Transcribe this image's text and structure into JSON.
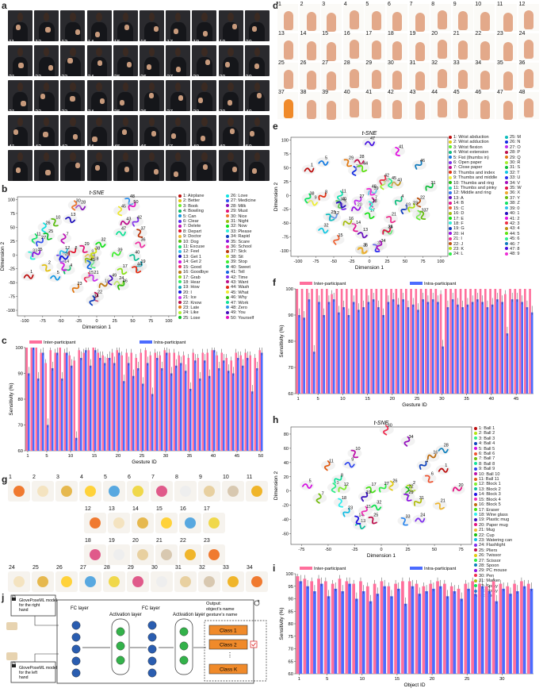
{
  "panels": {
    "a": "a",
    "b": "b",
    "c": "c",
    "d": "d",
    "e": "e",
    "f": "f",
    "g": "g",
    "h": "h",
    "i": "i",
    "j": "j"
  },
  "tsne_title": "t-SNE",
  "axes": {
    "dim1": "Dimension 1",
    "dim2": "Dimension 2",
    "sens": "Sensitivity (%)",
    "gesture_id": "Gesture ID",
    "object_id": "Object ID"
  },
  "legend_names": {
    "inter": "Inter-participant",
    "intra": "Intra-participant"
  },
  "colors": {
    "inter": "#ff6f9c",
    "intra": "#4b6bff",
    "orange": "#f08a2a",
    "block_border": "#333333"
  },
  "legend_b_col1": [
    "1: Airplane",
    "2: Better",
    "3: Book",
    "4: Bowling",
    "5: Can",
    "6: Clear",
    "7: Delete",
    "8: Depart",
    "9: Doctor",
    "10: Dog",
    "11: Excuse",
    "12: Feel",
    "13: Get 1",
    "14: Get 2",
    "15: Good",
    "16: Goodbye",
    "17: Grab",
    "18: Hear",
    "19: How",
    "20: I",
    "21: Ice",
    "22: Know",
    "23: Late",
    "24: Like",
    "25: Lose"
  ],
  "legend_b_col2": [
    "26: Love",
    "27: Medicine",
    "28: Milk",
    "29: Must",
    "30: Nice",
    "31: Night",
    "32: Now",
    "33: Please",
    "34: Rapid",
    "35: Scare",
    "36: School",
    "37: Sick",
    "38: Sit",
    "39: Stop",
    "40: Sweet",
    "41: Tell",
    "42: Time",
    "43: Want",
    "44: Wash",
    "45: What",
    "46: Why",
    "47: Work",
    "48: Zero",
    "49: You",
    "50: Yourself"
  ],
  "legend_e_col1": [
    "1: Wrist abduction",
    "2: Wrist adduction",
    "3: Wrist flexion",
    "4: Wrist extension",
    "5: Fist (thumbs in)",
    "6: Open paper",
    "7: Close paper",
    "8: Thumbs and index",
    "9: Thumbs and middle",
    "10: Thumbs and ring",
    "11: Thumbs and pinky",
    "12: Middle and ring",
    "13: A",
    "14: B",
    "15: C",
    "16: D",
    "17: E",
    "18: F",
    "19: G",
    "20: H",
    "21: I",
    "22: J",
    "23: K",
    "24: L"
  ],
  "legend_e_col2": [
    "25: M",
    "26: N",
    "27: O",
    "28: P",
    "29: Q",
    "30: R",
    "31: S",
    "32: T",
    "33: U",
    "34: V",
    "35: W",
    "36: X",
    "37: Y",
    "38: Z",
    "39: 0",
    "40: 1",
    "41: 2",
    "42: 3",
    "43: 4",
    "44: 5",
    "45: 6",
    "46: 7",
    "47: 8",
    "48: 9"
  ],
  "legend_h": [
    "1: Ball 1",
    "2: Ball 2",
    "3: Ball 3",
    "4: Ball 4",
    "5: Ball 5",
    "6: Ball 6",
    "7: Ball 7",
    "8: Ball 8",
    "9: Ball 9",
    "10: Ball 10",
    "11: Ball 11",
    "12: Block 1",
    "13: Block 2",
    "14: Block 3",
    "15: Block 4",
    "16: Block 5",
    "17: Eraser",
    "18: Wine glass",
    "19: Plastic mug",
    "20: Paper mug",
    "21: Mug",
    "22: Cup",
    "23: Watering can",
    "24: Flashlight",
    "25: Pliers",
    "26: Twissor",
    "27: Scissor",
    "28: Spoon",
    "29: PC mouse",
    "30: Pen",
    "31: Marker",
    "32: Spray L",
    "33: Spray",
    "34: Coin"
  ],
  "diagram_j": {
    "left_model_top": "GlovePoseML model for the right hand",
    "left_model_bottom": "GlovePoseML model for the left hand",
    "fc1": "FC layer",
    "act1": "Activation layer",
    "fc2": "FC layer",
    "act2": "Activation layer",
    "output_title": "Output: object's name gesture's name",
    "class1": "Class 1",
    "class2": "Class 2",
    "ellipsis": "⋮",
    "classk": "Class K"
  },
  "chart_data": [
    {
      "panel": "b",
      "type": "scatter",
      "title": "t-SNE",
      "xlabel": "Dimension 1",
      "ylabel": "Dimension 2",
      "xlim": [
        -110,
        110
      ],
      "ylim": [
        -110,
        105
      ],
      "xticks": [
        -100,
        -75,
        -50,
        -25,
        0,
        25,
        50,
        75,
        100
      ],
      "yticks": [
        -100,
        -75,
        -50,
        -25,
        0,
        25,
        50,
        75,
        100
      ],
      "x": [
        -95,
        -70,
        -8,
        -40,
        -58,
        -50,
        -45,
        -33,
        -10,
        -58,
        -85,
        -45,
        -37,
        -46,
        -12,
        10,
        35,
        -5,
        60,
        -45,
        -5,
        0,
        -28,
        30,
        -68,
        -72,
        -78,
        -23,
        -18,
        -30,
        -10,
        5,
        -90,
        -5,
        -83,
        60,
        60,
        -3,
        28,
        52,
        -10,
        55,
        40,
        55,
        33,
        35,
        33,
        45,
        20,
        50
      ],
      "y": [
        -38,
        -22,
        -8,
        -27,
        -40,
        -5,
        30,
        5,
        -2,
        60,
        30,
        5,
        65,
        -20,
        -40,
        -55,
        -28,
        -15,
        -20,
        -6,
        -40,
        -75,
        -60,
        -50,
        35,
        50,
        23,
        87,
        12,
        90,
        -8,
        20,
        0,
        -82,
        2,
        20,
        40,
        4,
        1,
        -3,
        -17,
        60,
        57,
        -25,
        80,
        -55,
        40,
        98,
        -45,
        88
      ],
      "labels": [
        "1",
        "2",
        "3",
        "4",
        "5",
        "6",
        "7",
        "8",
        "9",
        "10",
        "11",
        "12",
        "13",
        "14",
        "15",
        "16",
        "17",
        "18",
        "19",
        "20",
        "21",
        "22",
        "23",
        "24",
        "25",
        "26",
        "27",
        "28",
        "29",
        "30",
        "31",
        "32",
        "33",
        "34",
        "35",
        "36",
        "37",
        "38",
        "39",
        "40",
        "41",
        "42",
        "43",
        "44",
        "45",
        "46",
        "47",
        "48",
        "49",
        "50"
      ]
    },
    {
      "panel": "c",
      "type": "bar",
      "ylabel": "Sensitivity (%)",
      "xlabel": "Gesture ID",
      "ylim": [
        60,
        100
      ],
      "yticks": [
        60,
        70,
        80,
        90,
        100
      ],
      "categories": [
        "1",
        "2",
        "3",
        "4",
        "5",
        "6",
        "7",
        "8",
        "9",
        "10",
        "11",
        "12",
        "13",
        "14",
        "15",
        "16",
        "17",
        "18",
        "19",
        "20",
        "21",
        "22",
        "23",
        "24",
        "25",
        "26",
        "27",
        "28",
        "29",
        "30",
        "31",
        "32",
        "33",
        "34",
        "35",
        "36",
        "37",
        "38",
        "39",
        "40",
        "41",
        "42",
        "43",
        "44",
        "45",
        "46",
        "47",
        "48",
        "49",
        "50"
      ],
      "xtick_labels": [
        "1",
        "5",
        "10",
        "15",
        "20",
        "25",
        "30",
        "35",
        "40",
        "45",
        "50"
      ],
      "series": [
        {
          "name": "Inter-participant",
          "values": [
            100,
            100,
            100,
            98,
            94,
            99,
            98,
            100,
            98,
            97,
            95,
            99,
            98,
            99,
            100,
            98,
            97,
            96,
            98,
            99,
            97,
            98,
            98,
            96,
            98,
            99,
            97,
            98,
            97,
            99,
            98,
            98,
            97,
            97,
            96,
            98,
            96,
            98,
            98,
            99,
            97,
            98,
            96,
            95,
            98,
            97,
            98,
            97,
            96,
            99
          ]
        },
        {
          "name": "Intra-participant",
          "values": [
            90,
            100,
            88,
            98,
            70,
            92,
            98,
            88,
            98,
            93,
            65,
            96,
            99,
            93,
            99,
            96,
            94,
            96,
            94,
            98,
            87,
            94,
            89,
            92,
            86,
            94,
            82,
            96,
            92,
            98,
            90,
            93,
            94,
            91,
            84,
            95,
            88,
            95,
            89,
            99,
            92,
            95,
            91,
            90,
            96,
            93,
            96,
            83,
            92,
            98
          ]
        }
      ]
    },
    {
      "panel": "e",
      "type": "scatter",
      "title": "t-SNE",
      "xlabel": "Dimension 1",
      "ylabel": "Dimension 2",
      "xlim": [
        -110,
        110
      ],
      "ylim": [
        -110,
        105
      ],
      "xticks": [
        -100,
        -75,
        -50,
        -25,
        0,
        25,
        50,
        75,
        100
      ],
      "yticks": [
        -100,
        -75,
        -50,
        -25,
        0,
        25,
        50,
        75,
        100
      ],
      "x": [
        -85,
        -10,
        70,
        42,
        -65,
        -38,
        5,
        -65,
        -80,
        -42,
        -40,
        -50,
        -10,
        -20,
        -45,
        -30,
        0,
        3,
        50,
        -18,
        30,
        70,
        60,
        25,
        -55,
        -20,
        -15,
        -15,
        -30,
        20,
        85,
        -65,
        10,
        15,
        25,
        -10,
        75,
        -85,
        5,
        -40,
        40,
        20,
        38,
        -10,
        30,
        70,
        0,
        2
      ],
      "y": [
        47,
        -98,
        -35,
        -10,
        60,
        -18,
        -12,
        -2,
        -12,
        -15,
        0,
        -40,
        -70,
        -57,
        -80,
        -50,
        -35,
        -18,
        -25,
        -25,
        -42,
        -12,
        -22,
        -65,
        -38,
        45,
        -10,
        62,
        60,
        20,
        15,
        -62,
        -94,
        -90,
        -65,
        -98,
        -35,
        -5,
        5,
        -15,
        80,
        28,
        20,
        50,
        23,
        55,
        95,
        8
      ],
      "labels": [
        "1",
        "2",
        "3",
        "4",
        "5",
        "6",
        "7",
        "8",
        "9",
        "10",
        "11",
        "12",
        "13",
        "14",
        "15",
        "16",
        "17",
        "18",
        "19",
        "20",
        "21",
        "22",
        "23",
        "24",
        "25",
        "26",
        "27",
        "28",
        "29",
        "30",
        "31",
        "32",
        "33",
        "34",
        "35",
        "36",
        "37",
        "38",
        "39",
        "40",
        "41",
        "42",
        "43",
        "44",
        "45",
        "46",
        "47",
        "48"
      ]
    },
    {
      "panel": "f",
      "type": "bar",
      "ylabel": "Sensitivity (%)",
      "xlabel": "Gesture ID",
      "ylim": [
        60,
        100
      ],
      "yticks": [
        60,
        70,
        80,
        90,
        100
      ],
      "categories": [
        "1",
        "2",
        "3",
        "4",
        "5",
        "6",
        "7",
        "8",
        "9",
        "10",
        "11",
        "12",
        "13",
        "14",
        "15",
        "16",
        "17",
        "18",
        "19",
        "20",
        "21",
        "22",
        "23",
        "24",
        "25",
        "26",
        "27",
        "28",
        "29",
        "30",
        "31",
        "32",
        "33",
        "34",
        "35",
        "36",
        "37",
        "38",
        "39",
        "40",
        "41",
        "42",
        "43",
        "44",
        "45",
        "46",
        "47",
        "48"
      ],
      "xtick_labels": [
        "1",
        "5",
        "10",
        "15",
        "20",
        "25",
        "30",
        "35",
        "40",
        "45"
      ],
      "series": [
        {
          "name": "Inter-participant",
          "values": [
            100,
            100,
            100,
            100,
            100,
            100,
            100,
            98,
            100,
            100,
            100,
            100,
            100,
            100,
            100,
            100,
            100,
            100,
            100,
            100,
            100,
            100,
            100,
            100,
            100,
            100,
            100,
            100,
            100,
            98,
            100,
            100,
            100,
            100,
            100,
            100,
            100,
            100,
            100,
            100,
            100,
            100,
            98,
            100,
            100,
            100,
            100,
            100
          ]
        },
        {
          "name": "Intra-participant",
          "values": [
            90,
            89,
            96,
            76,
            95,
            90,
            95,
            96,
            91,
            93,
            90,
            95,
            92,
            93,
            95,
            96,
            93,
            90,
            95,
            96,
            94,
            96,
            93,
            94,
            92,
            96,
            95,
            96,
            95,
            78,
            93,
            96,
            94,
            93,
            94,
            95,
            96,
            95,
            93,
            94,
            96,
            95,
            83,
            96,
            96,
            95,
            93,
            91
          ]
        }
      ]
    },
    {
      "panel": "h",
      "type": "scatter",
      "title": "t-SNE",
      "xlabel": "Dimension 1",
      "ylabel": "Dimension 2",
      "xlim": [
        -85,
        85
      ],
      "ylim": [
        -75,
        90
      ],
      "xticks": [
        -75,
        -50,
        -25,
        0,
        25,
        50,
        75
      ],
      "yticks": [
        -60,
        -40,
        -20,
        0,
        20,
        40,
        60,
        80
      ],
      "x": [
        58,
        28,
        -44,
        40,
        -70,
        45,
        -58,
        -40,
        -30,
        -25,
        -50,
        -36,
        -20,
        -22,
        -15,
        48,
        -10,
        -38,
        -15,
        72,
        55,
        25,
        -32,
        36,
        -8,
        10,
        2,
        58,
        25,
        5,
        35,
        -5,
        22,
        25
      ],
      "y": [
        30,
        5,
        5,
        36,
        8,
        18,
        -10,
        16,
        38,
        53,
        36,
        3,
        -48,
        -40,
        -28,
        48,
        3,
        -16,
        -8,
        2,
        -20,
        0,
        -30,
        -40,
        -40,
        8,
        4,
        58,
        -8,
        86,
        -16,
        -22,
        -42,
        70
      ],
      "labels": [
        "1",
        "2",
        "3",
        "4",
        "5",
        "6",
        "7",
        "8",
        "9",
        "10",
        "11",
        "12",
        "13",
        "14",
        "15",
        "16",
        "17",
        "18",
        "19",
        "20",
        "21",
        "22",
        "23",
        "24",
        "25",
        "26",
        "27",
        "28",
        "29",
        "30",
        "31",
        "32",
        "33",
        "34"
      ]
    },
    {
      "panel": "i",
      "type": "bar",
      "ylabel": "Sensitivity (%)",
      "xlabel": "Object ID",
      "ylim": [
        60,
        100
      ],
      "yticks": [
        60,
        65,
        70,
        75,
        80,
        85,
        90,
        95,
        100
      ],
      "categories": [
        "1",
        "2",
        "3",
        "4",
        "5",
        "6",
        "7",
        "8",
        "9",
        "10",
        "11",
        "12",
        "13",
        "14",
        "15",
        "16",
        "17",
        "18",
        "19",
        "20",
        "21",
        "22",
        "23",
        "24",
        "25",
        "26",
        "27",
        "28",
        "29",
        "30",
        "31",
        "32",
        "33",
        "34"
      ],
      "xtick_labels": [
        "1",
        "5",
        "10",
        "15",
        "20",
        "25",
        "30"
      ],
      "series": [
        {
          "name": "Inter-participant",
          "values": [
            99,
            98,
            97,
            98,
            97,
            96,
            98,
            97,
            96,
            97,
            95,
            96,
            97,
            95,
            96,
            97,
            97,
            96,
            95,
            96,
            97,
            96,
            95,
            94,
            96,
            97,
            96,
            95,
            97,
            96,
            95,
            96,
            97,
            96
          ]
        },
        {
          "name": "Intra-participant",
          "values": [
            97,
            95,
            93,
            96,
            91,
            94,
            93,
            96,
            90,
            93,
            89,
            92,
            95,
            91,
            94,
            88,
            95,
            92,
            93,
            94,
            95,
            91,
            93,
            90,
            94,
            92,
            95,
            93,
            89,
            94,
            92,
            93,
            95,
            94
          ]
        }
      ]
    }
  ]
}
